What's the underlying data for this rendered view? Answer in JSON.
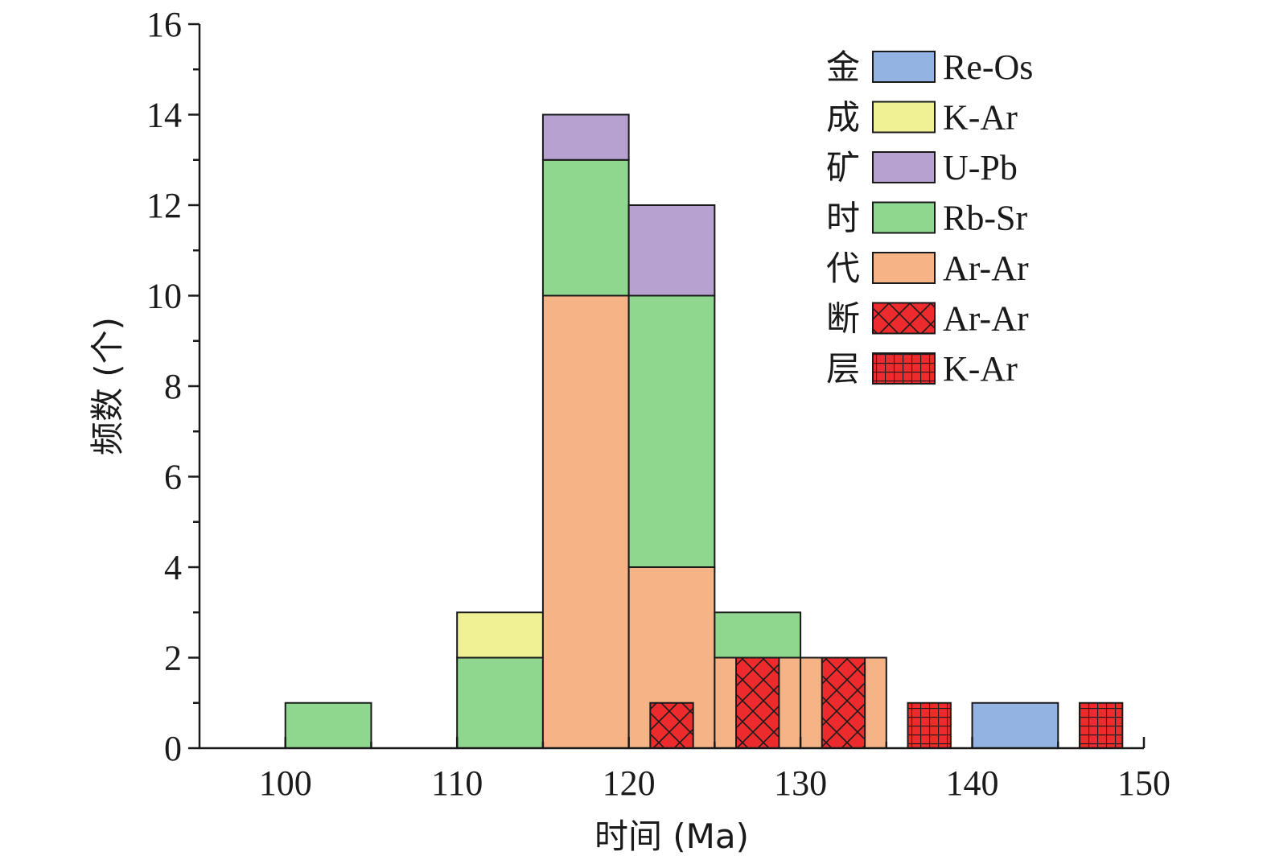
{
  "chart_data": {
    "type": "bar",
    "subtype": "stacked-histogram",
    "xlabel": "时间 (Ma)",
    "ylabel": "频数 (个)",
    "xlim": [
      95,
      150
    ],
    "ylim": [
      0,
      16
    ],
    "x_ticks": [
      100,
      110,
      120,
      130,
      140,
      150
    ],
    "y_ticks": [
      0,
      2,
      4,
      6,
      8,
      10,
      12,
      14,
      16
    ],
    "y_minor_step": 1,
    "grid": false,
    "legend_position": "top-right",
    "legend_groups": [
      {
        "label": "金成矿时代",
        "chars": [
          "金",
          "成",
          "矿",
          "时",
          "代"
        ]
      },
      {
        "label": "断层",
        "chars": [
          "断",
          "层"
        ]
      }
    ],
    "series": [
      {
        "key": "re_os",
        "name": "Re-Os",
        "group": "金成矿时代",
        "color": "#93b3e2",
        "pattern": "solid"
      },
      {
        "key": "k_ar",
        "name": "K-Ar",
        "group": "金成矿时代",
        "color": "#f0f194",
        "pattern": "solid"
      },
      {
        "key": "u_pb",
        "name": "U-Pb",
        "group": "金成矿时代",
        "color": "#b6a1d0",
        "pattern": "solid"
      },
      {
        "key": "rb_sr",
        "name": "Rb-Sr",
        "group": "金成矿时代",
        "color": "#8fd68f",
        "pattern": "solid"
      },
      {
        "key": "ar_ar",
        "name": "Ar-Ar",
        "group": "金成矿时代",
        "color": "#f5b386",
        "pattern": "solid"
      },
      {
        "key": "fault_ar_ar",
        "name": "Ar-Ar",
        "group": "断层",
        "color": "#ee2b2c",
        "pattern": "cross-hatch"
      },
      {
        "key": "fault_k_ar",
        "name": "K-Ar",
        "group": "断层",
        "color": "#ee2b2c",
        "pattern": "grid"
      }
    ],
    "bins": [
      {
        "x0": 100,
        "x1": 105,
        "stack": [
          {
            "series": "rb_sr",
            "value": 1
          }
        ]
      },
      {
        "x0": 110,
        "x1": 115,
        "stack": [
          {
            "series": "rb_sr",
            "value": 2
          },
          {
            "series": "k_ar",
            "value": 1
          }
        ]
      },
      {
        "x0": 115,
        "x1": 120,
        "stack": [
          {
            "series": "ar_ar",
            "value": 10
          },
          {
            "series": "rb_sr",
            "value": 3
          },
          {
            "series": "u_pb",
            "value": 1
          }
        ]
      },
      {
        "x0": 120,
        "x1": 125,
        "stack": [
          {
            "series": "ar_ar",
            "value": 4
          },
          {
            "series": "rb_sr",
            "value": 6
          },
          {
            "series": "u_pb",
            "value": 2
          }
        ]
      },
      {
        "x0": 125,
        "x1": 130,
        "stack": [
          {
            "series": "ar_ar",
            "value": 2
          },
          {
            "series": "rb_sr",
            "value": 1
          }
        ]
      },
      {
        "x0": 130,
        "x1": 135,
        "stack": [
          {
            "series": "ar_ar",
            "value": 2
          }
        ]
      },
      {
        "x0": 140,
        "x1": 145,
        "stack": [
          {
            "series": "re_os",
            "value": 1
          }
        ]
      }
    ],
    "fault_bars": [
      {
        "series": "fault_ar_ar",
        "x0": 121.25,
        "x1": 123.75,
        "value": 1
      },
      {
        "series": "fault_ar_ar",
        "x0": 126.25,
        "x1": 128.75,
        "value": 2
      },
      {
        "series": "fault_ar_ar",
        "x0": 131.25,
        "x1": 133.75,
        "value": 2
      },
      {
        "series": "fault_k_ar",
        "x0": 136.25,
        "x1": 138.75,
        "value": 1
      },
      {
        "series": "fault_k_ar",
        "x0": 146.25,
        "x1": 148.75,
        "value": 1
      }
    ]
  }
}
